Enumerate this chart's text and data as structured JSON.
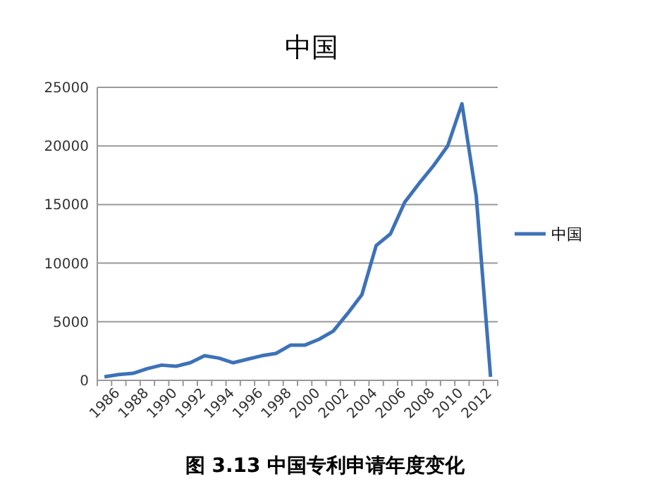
{
  "chart_data": {
    "type": "line",
    "title": "中国",
    "categories": [
      "1986",
      null,
      "1988",
      null,
      "1990",
      null,
      "1992",
      null,
      "1994",
      null,
      "1996",
      null,
      "1998",
      null,
      "2000",
      null,
      "2002",
      null,
      "2004",
      null,
      "2006",
      null,
      "2008",
      null,
      "2010",
      null,
      "2012",
      null
    ],
    "series": [
      {
        "name": "中国",
        "color": "#3d72b8",
        "values": [
          300,
          500,
          600,
          1000,
          1300,
          1200,
          1500,
          2100,
          1900,
          1500,
          1800,
          2100,
          2300,
          3000,
          3000,
          3500,
          4200,
          5700,
          7300,
          11500,
          12500,
          15200,
          16800,
          18300,
          20000,
          23600,
          15700,
          300
        ]
      }
    ],
    "ylim": [
      0,
      25000
    ],
    "yticks": [
      0,
      5000,
      10000,
      15000,
      20000,
      25000
    ],
    "grid": "y",
    "legend": "right",
    "marker": "none",
    "line_style": "solid",
    "annotations": [
      "图 3.13 中国专利申请年度变化"
    ]
  }
}
